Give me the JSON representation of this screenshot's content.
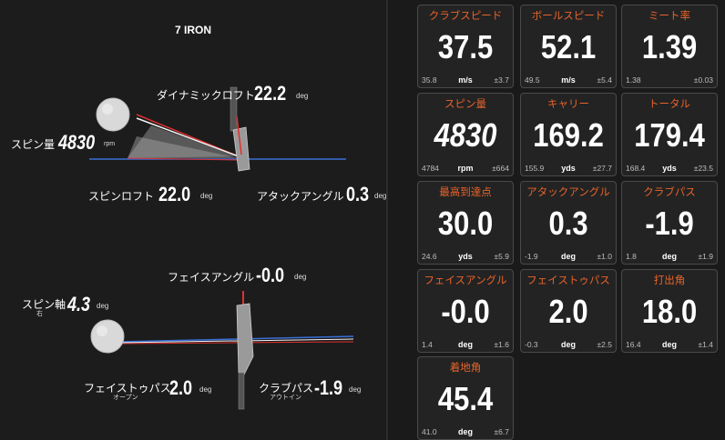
{
  "club": "7 IRON",
  "top_view": {
    "dynamic_loft": {
      "label": "ダイナミックロフト",
      "value": "22.2",
      "unit": "deg"
    },
    "spin_rate": {
      "label": "スピン量",
      "value": "4830",
      "unit": "rpm"
    },
    "spin_loft": {
      "label": "スピンロフト",
      "value": "22.0",
      "unit": "deg"
    },
    "attack_angle": {
      "label": "アタックアングル",
      "value": "0.3",
      "unit": "deg"
    }
  },
  "bottom_view": {
    "face_angle": {
      "label": "フェイスアングル",
      "value": "-0.0",
      "unit": "deg"
    },
    "spin_axis": {
      "label": "スピン軸",
      "sublabel": "右",
      "value": "4.3",
      "unit": "deg"
    },
    "face_to_path": {
      "label": "フェイストゥパス",
      "sublabel": "オープン",
      "value": "2.0",
      "unit": "deg"
    },
    "club_path": {
      "label": "クラブパス",
      "sublabel": "アウトイン",
      "value": "-1.9",
      "unit": "deg"
    }
  },
  "cards": [
    {
      "title": "クラブスピード",
      "value": "37.5",
      "min": "35.8",
      "unit": "m/s",
      "dev": "±3.7",
      "italic": false
    },
    {
      "title": "ボールスピード",
      "value": "52.1",
      "min": "49.5",
      "unit": "m/s",
      "dev": "±5.4",
      "italic": false
    },
    {
      "title": "ミート率",
      "value": "1.39",
      "min": "1.38",
      "unit": "",
      "dev": "±0.03",
      "italic": false
    },
    {
      "title": "スピン量",
      "value": "4830",
      "min": "4784",
      "unit": "rpm",
      "dev": "±664",
      "italic": true
    },
    {
      "title": "キャリー",
      "value": "169.2",
      "min": "155.9",
      "unit": "yds",
      "dev": "±27.7",
      "italic": false
    },
    {
      "title": "トータル",
      "value": "179.4",
      "min": "168.4",
      "unit": "yds",
      "dev": "±23.5",
      "italic": false
    },
    {
      "title": "最高到達点",
      "value": "30.0",
      "min": "24.6",
      "unit": "yds",
      "dev": "±5.9",
      "italic": false
    },
    {
      "title": "アタックアングル",
      "value": "0.3",
      "min": "-1.9",
      "unit": "deg",
      "dev": "±1.0",
      "italic": false
    },
    {
      "title": "クラブパス",
      "value": "-1.9",
      "min": "1.8",
      "unit": "deg",
      "dev": "±1.9",
      "italic": false
    },
    {
      "title": "フェイスアングル",
      "value": "-0.0",
      "min": "1.4",
      "unit": "deg",
      "dev": "±1.6",
      "italic": false
    },
    {
      "title": "フェイストゥパス",
      "value": "2.0",
      "min": "-0.3",
      "unit": "deg",
      "dev": "±2.5",
      "italic": false
    },
    {
      "title": "打出角",
      "value": "18.0",
      "min": "16.4",
      "unit": "deg",
      "dev": "±1.4",
      "italic": false
    },
    {
      "title": "着地角",
      "value": "45.4",
      "min": "41.0",
      "unit": "deg",
      "dev": "±6.7",
      "italic": false
    }
  ],
  "colors": {
    "accent": "#e8632a",
    "path_red": "#e03030",
    "path_blue": "#3a6fd8",
    "card_border": "#4a4a4a"
  }
}
